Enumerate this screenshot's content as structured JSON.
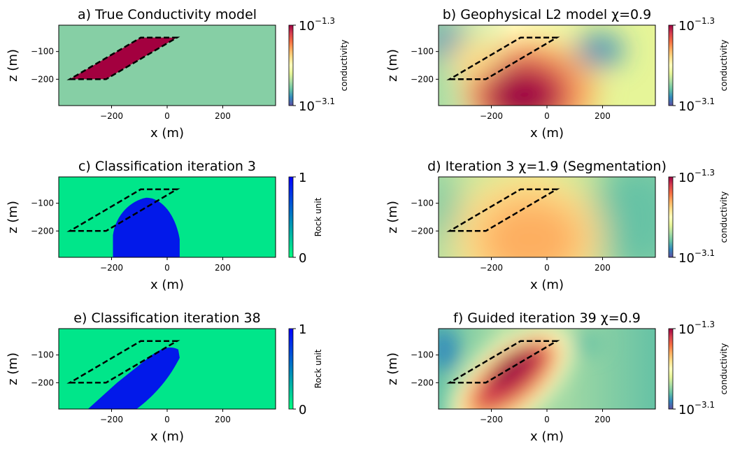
{
  "figure": {
    "colors": {
      "host": "#86cfa5",
      "body": "#a3003f",
      "unit0": "#00e68a",
      "unit1": "#0219ea",
      "outline": "#000000"
    },
    "panels": [
      {
        "id": "a",
        "title": "a) True Conductivity model",
        "kind": "true-model",
        "xlabel": "x (m)",
        "ylabel": "z (m)",
        "xticks": [
          -200,
          0,
          200
        ],
        "yticks": [
          -100,
          -200
        ],
        "colorbar": {
          "label": "conductivity",
          "type": "log",
          "top": "10",
          "top_exp": "−1.3",
          "bottom": "10",
          "bottom_exp": "−3.1",
          "cmap": "spectral"
        }
      },
      {
        "id": "b",
        "title": "b) Geophysical L2 model χ=0.9",
        "kind": "l2",
        "xlabel": "x (m)",
        "ylabel": "z (m)",
        "xticks": [
          -200,
          0,
          200
        ],
        "yticks": [
          -100,
          -200
        ],
        "colorbar": {
          "label": "conductivity",
          "type": "log",
          "top": "10",
          "top_exp": "−1.3",
          "bottom": "10",
          "bottom_exp": "−3.1",
          "cmap": "spectral"
        }
      },
      {
        "id": "c",
        "title": "c) Classification iteration 3",
        "kind": "class-3",
        "xlabel": "x (m)",
        "ylabel": "z (m)",
        "xticks": [
          -200,
          0,
          200
        ],
        "yticks": [
          -100,
          -200
        ],
        "colorbar": {
          "label": "Rock unit",
          "type": "linear",
          "top": "1",
          "top_exp": "",
          "bottom": "0",
          "bottom_exp": "",
          "cmap": "winter"
        }
      },
      {
        "id": "d",
        "title": "d) Iteration 3 χ=1.9 (Segmentation)",
        "kind": "iter-3",
        "xlabel": "x (m)",
        "ylabel": "z (m)",
        "xticks": [
          -200,
          0,
          200
        ],
        "yticks": [
          -100,
          -200
        ],
        "colorbar": {
          "label": "conductivity",
          "type": "log",
          "top": "10",
          "top_exp": "−1.3",
          "bottom": "10",
          "bottom_exp": "−3.1",
          "cmap": "spectral"
        }
      },
      {
        "id": "e",
        "title": "e) Classification iteration 38",
        "kind": "class-38",
        "xlabel": "x (m)",
        "ylabel": "z (m)",
        "xticks": [
          -200,
          0,
          200
        ],
        "yticks": [
          -100,
          -200
        ],
        "colorbar": {
          "label": "Rock unit",
          "type": "linear",
          "top": "1",
          "top_exp": "",
          "bottom": "0",
          "bottom_exp": "",
          "cmap": "winter"
        }
      },
      {
        "id": "f",
        "title": "f) Guided iteration 39 χ=0.9",
        "kind": "guided-39",
        "xlabel": "x (m)",
        "ylabel": "z (m)",
        "xticks": [
          -200,
          0,
          200
        ],
        "yticks": [
          -100,
          -200
        ],
        "colorbar": {
          "label": "conductivity",
          "type": "log",
          "top": "10",
          "top_exp": "−1.3",
          "bottom": "10",
          "bottom_exp": "−3.1",
          "cmap": "spectral"
        }
      }
    ]
  },
  "chart_data": [
    {
      "type": "heatmap",
      "title": "a) True Conductivity model",
      "xlabel": "x (m)",
      "ylabel": "z (m)",
      "xlim": [
        -390,
        390
      ],
      "ylim": [
        -295,
        -5
      ],
      "colorbar": {
        "label": "conductivity",
        "range_log10": [
          -3.1,
          -1.3
        ]
      },
      "true_body_outline_xz": [
        [
          -350,
          -200
        ],
        [
          -220,
          -200
        ],
        [
          35,
          -50
        ],
        [
          -95,
          -50
        ]
      ]
    },
    {
      "type": "heatmap",
      "title": "b) Geophysical L2 model χ=0.9",
      "xlabel": "x (m)",
      "ylabel": "z (m)",
      "xlim": [
        -390,
        390
      ],
      "ylim": [
        -295,
        -5
      ],
      "colorbar": {
        "label": "conductivity",
        "range_log10": [
          -3.1,
          -1.3
        ]
      }
    },
    {
      "type": "heatmap",
      "title": "c) Classification iteration 3",
      "xlabel": "x (m)",
      "ylabel": "z (m)",
      "xlim": [
        -390,
        390
      ],
      "ylim": [
        -295,
        -5
      ],
      "colorbar": {
        "label": "Rock unit",
        "range": [
          0,
          1
        ]
      }
    },
    {
      "type": "heatmap",
      "title": "d) Iteration 3 χ=1.9 (Segmentation)",
      "xlabel": "x (m)",
      "ylabel": "z (m)",
      "xlim": [
        -390,
        390
      ],
      "ylim": [
        -295,
        -5
      ],
      "colorbar": {
        "label": "conductivity",
        "range_log10": [
          -3.1,
          -1.3
        ]
      }
    },
    {
      "type": "heatmap",
      "title": "e) Classification iteration 38",
      "xlabel": "x (m)",
      "ylabel": "z (m)",
      "xlim": [
        -390,
        390
      ],
      "ylim": [
        -295,
        -5
      ],
      "colorbar": {
        "label": "Rock unit",
        "range": [
          0,
          1
        ]
      }
    },
    {
      "type": "heatmap",
      "title": "f) Guided iteration 39 χ=0.9",
      "xlabel": "x (m)",
      "ylabel": "z (m)",
      "xlim": [
        -390,
        390
      ],
      "ylim": [
        -295,
        -5
      ],
      "colorbar": {
        "label": "conductivity",
        "range_log10": [
          -3.1,
          -1.3
        ]
      }
    }
  ]
}
